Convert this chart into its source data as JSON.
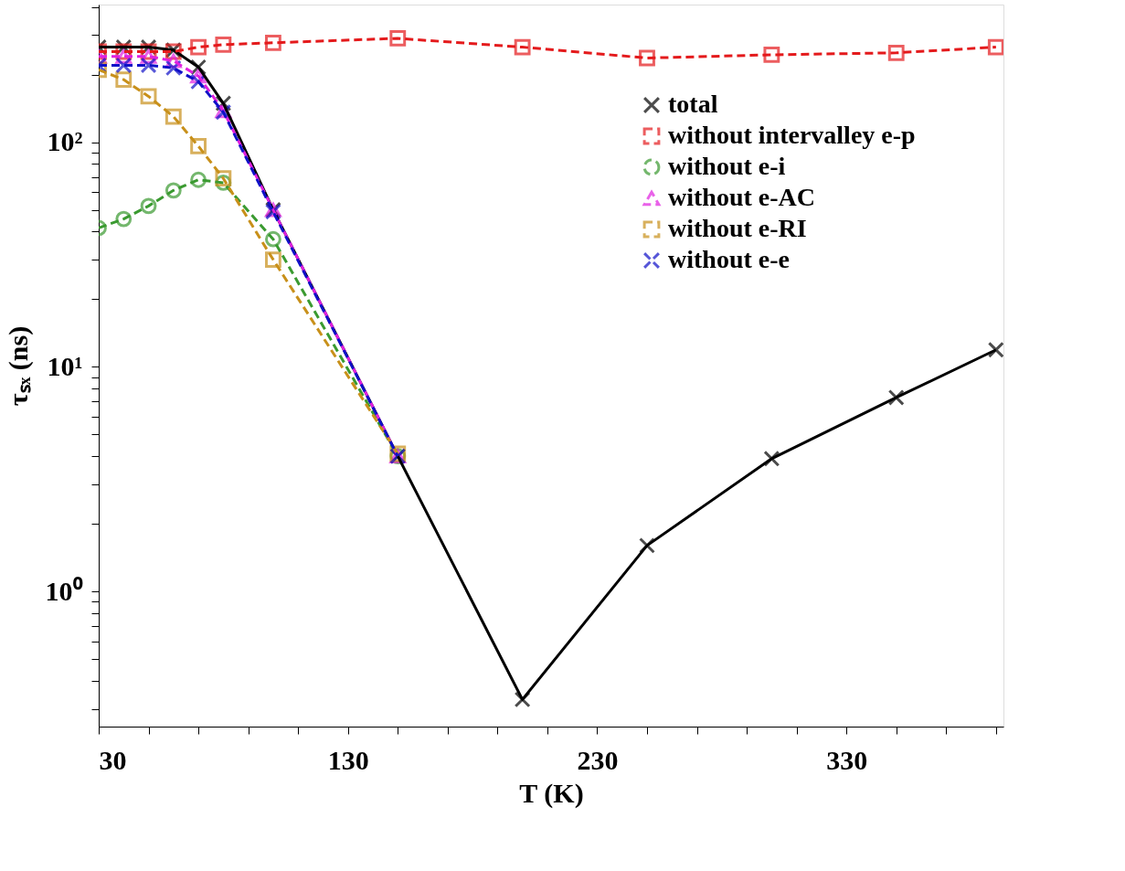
{
  "chart_data": {
    "type": "line",
    "xlabel": "T (K)",
    "ylabel": "τₛₓ (ns)",
    "log": "y",
    "legend": "top right",
    "grid": false,
    "xlim": [
      30,
      393
    ],
    "xticks": [
      30,
      {
        "value": 50,
        "label": null
      },
      {
        "value": 70,
        "label": null
      },
      {
        "value": 90,
        "label": null
      },
      {
        "value": 110,
        "label": null
      },
      130,
      {
        "value": 150,
        "label": null
      },
      {
        "value": 170,
        "label": null
      },
      {
        "value": 190,
        "label": null
      },
      {
        "value": 210,
        "label": null
      },
      230,
      {
        "value": 250,
        "label": null
      },
      {
        "value": 270,
        "label": null
      },
      {
        "value": 290,
        "label": null
      },
      {
        "value": 310,
        "label": null
      },
      330,
      {
        "value": 350,
        "label": null
      },
      {
        "value": 370,
        "label": null
      },
      {
        "value": 390,
        "label": null
      }
    ],
    "ylim": [
      0.25,
      410
    ],
    "yticks": [
      {
        "value": 0.3,
        "label": null
      },
      {
        "value": 0.4,
        "label": null
      },
      {
        "value": 0.5,
        "label": null
      },
      {
        "value": 0.6,
        "label": null
      },
      {
        "value": 0.7,
        "label": null
      },
      {
        "value": 0.8,
        "label": null
      },
      {
        "value": 0.9,
        "label": null
      },
      {
        "value": 1,
        "label": "10⁰"
      },
      {
        "value": 2,
        "label": null
      },
      {
        "value": 3,
        "label": null
      },
      {
        "value": 4,
        "label": null
      },
      {
        "value": 5,
        "label": null
      },
      {
        "value": 6,
        "label": null
      },
      {
        "value": 7,
        "label": null
      },
      {
        "value": 8,
        "label": null
      },
      {
        "value": 9,
        "label": null
      },
      {
        "value": 10,
        "label": "10¹"
      },
      {
        "value": 20,
        "label": null
      },
      {
        "value": 30,
        "label": null
      },
      {
        "value": 40,
        "label": null
      },
      {
        "value": 50,
        "label": null
      },
      {
        "value": 60,
        "label": null
      },
      {
        "value": 70,
        "label": null
      },
      {
        "value": 80,
        "label": null
      },
      {
        "value": 90,
        "label": null
      },
      {
        "value": 100,
        "label": "10²"
      },
      {
        "value": 200,
        "label": null
      },
      {
        "value": 300,
        "label": null
      },
      {
        "value": 400,
        "label": null
      }
    ],
    "series": [
      {
        "name": "total",
        "color": "#000000",
        "marker": "cross",
        "line_style": "solid",
        "x": [
          30,
          40,
          50,
          60,
          70,
          80,
          100,
          150,
          200,
          250,
          300,
          350,
          390
        ],
        "values": [
          265,
          265,
          265,
          257,
          216,
          149,
          50,
          4.0,
          0.33,
          1.6,
          3.9,
          7.3,
          11.9
        ]
      },
      {
        "name": "without intervalley e-p",
        "color": "#e41a1c",
        "marker": "square",
        "line_style": "dashed",
        "x": [
          30,
          40,
          50,
          60,
          70,
          80,
          100,
          150,
          200,
          250,
          300,
          350,
          390
        ],
        "values": [
          253,
          253,
          253,
          253,
          265,
          272,
          277,
          290,
          265,
          237,
          245,
          250,
          265
        ]
      },
      {
        "name": "without e-i",
        "color": "#3a9a30",
        "marker": "circle",
        "line_style": "dashed",
        "x": [
          30,
          40,
          50,
          60,
          70,
          80,
          100,
          150
        ],
        "values": [
          41.5,
          45.5,
          52,
          61,
          68,
          66,
          37,
          4.0
        ]
      },
      {
        "name": "without e-AC",
        "color": "#e020e0",
        "marker": "triangle",
        "line_style": "dashed",
        "x": [
          30,
          40,
          50,
          60,
          70,
          80,
          100,
          150
        ],
        "values": [
          241,
          241,
          241,
          230,
          197,
          138,
          50,
          4.0
        ]
      },
      {
        "name": "without e-RI",
        "color": "#c8901a",
        "marker": "square",
        "line_style": "dashed",
        "x": [
          30,
          40,
          50,
          60,
          70,
          80,
          100,
          150
        ],
        "values": [
          210,
          190,
          160,
          130,
          96,
          69,
          30,
          4.1
        ]
      },
      {
        "name": "without e-e",
        "color": "#1010c8",
        "marker": "cross",
        "line_style": "dashed",
        "x": [
          30,
          40,
          50,
          60,
          70,
          80,
          100,
          150
        ],
        "values": [
          220,
          220,
          220,
          214,
          186,
          136,
          49,
          4.0
        ]
      }
    ]
  }
}
